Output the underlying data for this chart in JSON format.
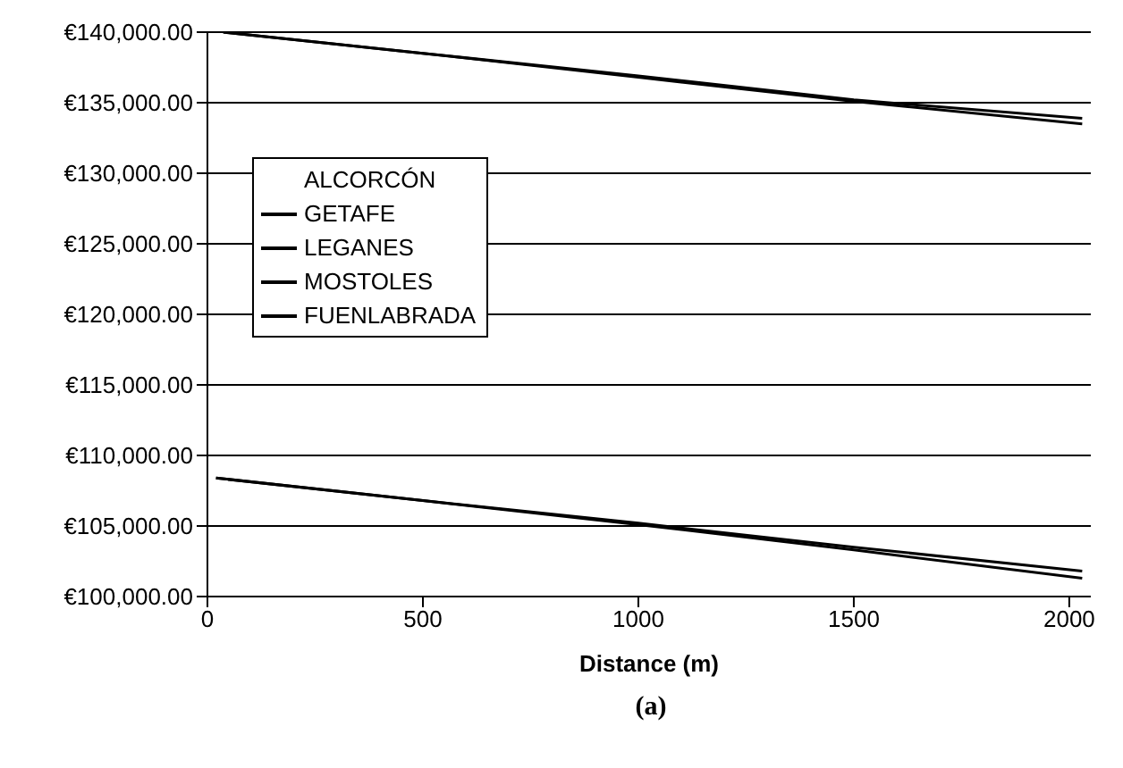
{
  "chart_data": {
    "type": "line",
    "xlabel": "Distance (m)",
    "legend_title": "ALCORCÓN",
    "annotations": [
      "(a)"
    ],
    "series": [
      {
        "name": "GETAFE",
        "color": "#000000",
        "x": [
          37,
          500,
          1000,
          1500,
          2030
        ],
        "values": [
          140000,
          138500,
          136900,
          135200,
          133900
        ]
      },
      {
        "name": "LEGANES",
        "color": "#000000",
        "x": [
          37,
          500,
          1000,
          1500,
          2030
        ],
        "values": [
          140000,
          138500,
          136800,
          135100,
          133500
        ]
      },
      {
        "name": "MOSTOLES",
        "color": "#000000",
        "x": [
          20,
          500,
          1000,
          1500,
          2030
        ],
        "values": [
          108400,
          106800,
          105200,
          103500,
          101800
        ]
      },
      {
        "name": "FUENLABRADA",
        "color": "#000000",
        "x": [
          20,
          500,
          1000,
          1500,
          2030
        ],
        "values": [
          108400,
          106800,
          105100,
          103300,
          101300
        ]
      }
    ],
    "xlim": [
      0,
      2050
    ],
    "xticks": [
      0,
      500,
      1000,
      1500,
      2000
    ],
    "ylim": [
      100000,
      140000
    ],
    "yticks": [
      {
        "value": 100000,
        "label": "€100,000.00"
      },
      {
        "value": 105000,
        "label": "€105,000.00"
      },
      {
        "value": 110000,
        "label": "€110,000.00"
      },
      {
        "value": 115000,
        "label": "€115,000.00"
      },
      {
        "value": 120000,
        "label": "€120,000.00"
      },
      {
        "value": 125000,
        "label": "€125,000.00"
      },
      {
        "value": 130000,
        "label": "€130,000.00"
      },
      {
        "value": 135000,
        "label": "€135,000.00"
      },
      {
        "value": 140000,
        "label": "€140,000.00"
      }
    ],
    "grid": "y",
    "legend": "left",
    "marker": "none",
    "line_style": "solid"
  }
}
